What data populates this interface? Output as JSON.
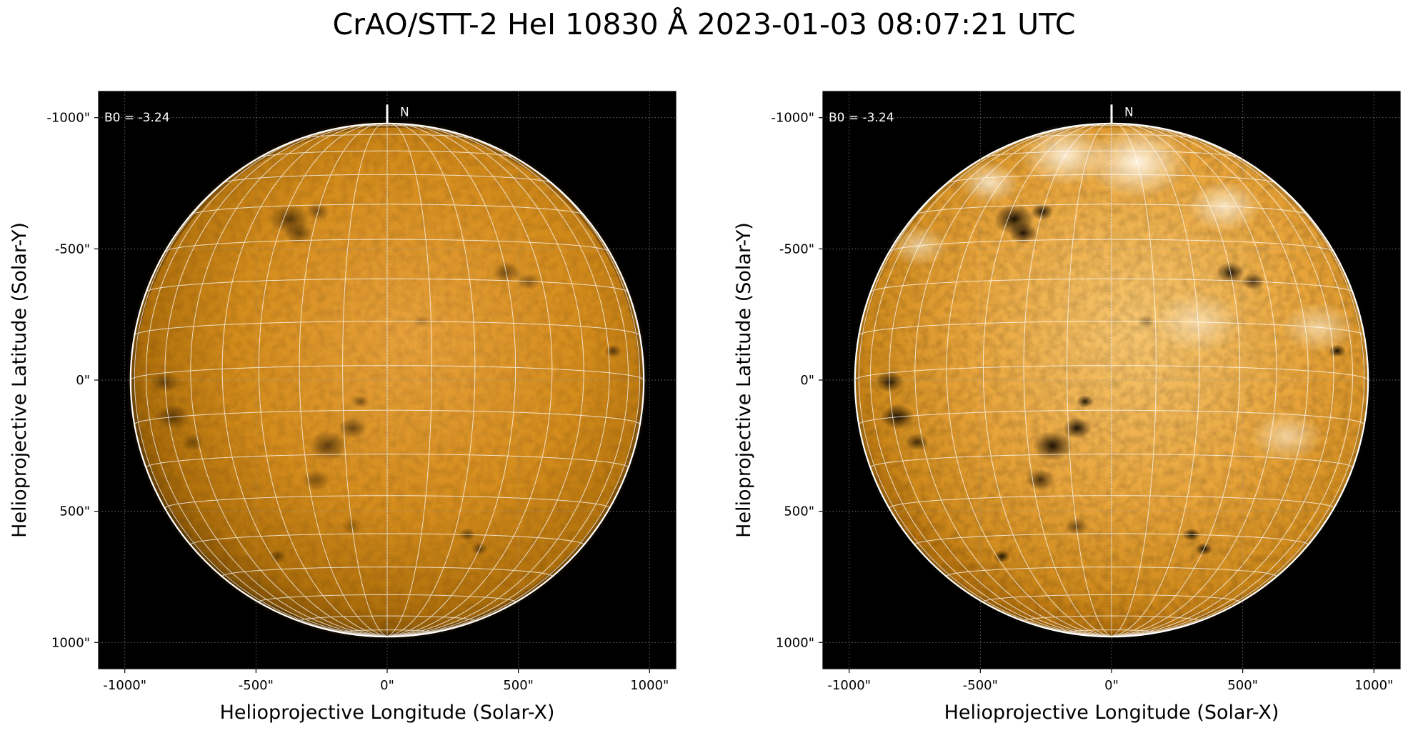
{
  "title": "CrAO/STT-2 HeI 10830 Å 2023-01-03 08:07:21 UTC",
  "colors": {
    "background": "#000000",
    "disk_base": "#c07d10",
    "disk_base_enhanced": "#eca23a",
    "dark_features": "#1a0d00",
    "bright_regions": "#fff4dc",
    "grid": "#ffffff",
    "limb": "#ffffff"
  },
  "panels": [
    {
      "variant": "normal",
      "annotation": "B0 = -3.24",
      "north_label": "N",
      "xlabel": "Helioprojective Longitude (Solar-X)",
      "ylabel": "Helioprojective Latitude (Solar-Y)",
      "xticks": [
        "-1000\"",
        "-500\"",
        "0\"",
        "500\"",
        "1000\""
      ],
      "yticks": [
        "1000\"",
        "500\"",
        "0\"",
        "-500\"",
        "-1000\""
      ]
    },
    {
      "variant": "enhanced",
      "annotation": "B0 = -3.24",
      "north_label": "N",
      "xlabel": "Helioprojective Longitude (Solar-X)",
      "ylabel": "Helioprojective Latitude (Solar-Y)",
      "xticks": [
        "-1000\"",
        "-500\"",
        "0\"",
        "500\"",
        "1000\""
      ],
      "yticks": [
        "1000\"",
        "500\"",
        "0\"",
        "-500\"",
        "-1000\""
      ]
    }
  ]
}
